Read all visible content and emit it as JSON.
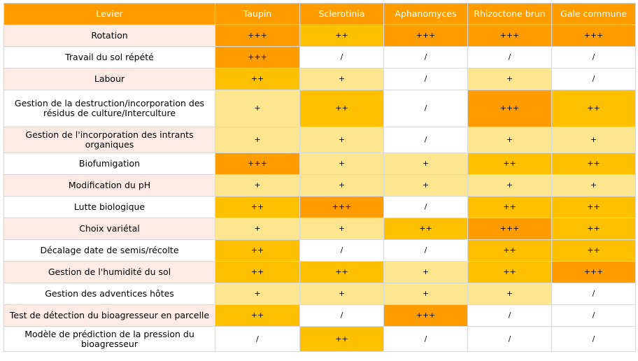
{
  "chart_data": {
    "type": "table",
    "columns": [
      "Levier",
      "Taupin",
      "Sclerotinia",
      "Aphanomyces",
      "Rhizoctone brun",
      "Gale commune"
    ],
    "rows": [
      {
        "lever": "Rotation",
        "values": [
          "+++",
          "++",
          "+++",
          "+++",
          "+++"
        ]
      },
      {
        "lever": "Travail du sol répété",
        "values": [
          "+++",
          "/",
          "/",
          "/",
          "/"
        ]
      },
      {
        "lever": "Labour",
        "values": [
          "++",
          "+",
          "/",
          "+",
          "/"
        ]
      },
      {
        "lever": "Gestion de la destruction/incorporation des résidus de culture/Interculture",
        "values": [
          "+",
          "++",
          "/",
          "+++",
          "++"
        ]
      },
      {
        "lever": "Gestion de l'incorporation des intrants organiques",
        "values": [
          "+",
          "+",
          "/",
          "+",
          "+"
        ]
      },
      {
        "lever": "Biofumigation",
        "values": [
          "+++",
          "+",
          "+",
          "++",
          "++"
        ]
      },
      {
        "lever": "Modification du pH",
        "values": [
          "+",
          "+",
          "+",
          "+",
          "+"
        ]
      },
      {
        "lever": "Lutte biologique",
        "values": [
          "++",
          "+++",
          "/",
          "++",
          "++"
        ]
      },
      {
        "lever": "Choix variétal",
        "values": [
          "+",
          "+",
          "++",
          "+++",
          "++"
        ]
      },
      {
        "lever": "Décalage date de semis/récolte",
        "values": [
          "++",
          "/",
          "/",
          "++",
          "++"
        ]
      },
      {
        "lever": "Gestion de l'humidité du sol",
        "values": [
          "++",
          "++",
          "+",
          "++",
          "+++"
        ]
      },
      {
        "lever": "Gestion des adventices hôtes",
        "values": [
          "+",
          "+",
          "+",
          "+",
          "/"
        ]
      },
      {
        "lever": "Test de détection du bioagresseur en parcelle",
        "values": [
          "++",
          "/",
          "+++",
          "/",
          "/"
        ]
      },
      {
        "lever": "Modèle de prédiction de la pression du bioagresseur",
        "values": [
          "/",
          "++",
          "/",
          "/",
          "/"
        ]
      }
    ],
    "level_colors": {
      "/": "#ffffff",
      "+": "#fde68d",
      "++": "#ffc000",
      "+++": "#ff9d00"
    },
    "header_color": "#ff9d00",
    "lever_colors": [
      "#fdebe4",
      "#ffffff"
    ]
  }
}
